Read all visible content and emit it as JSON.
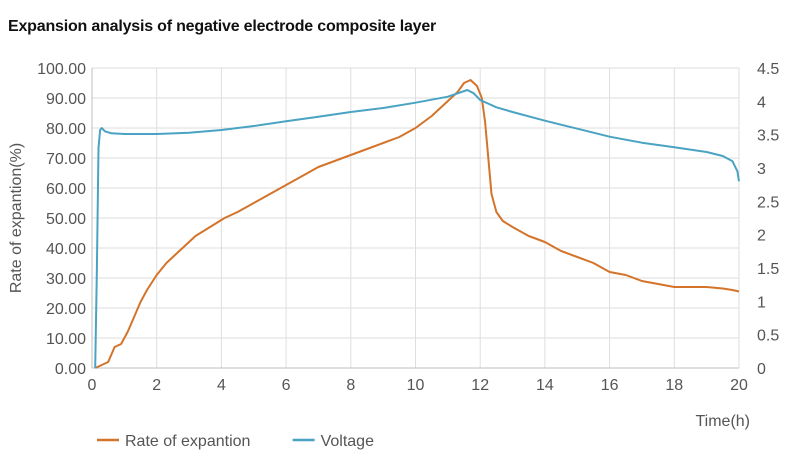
{
  "chart_data": {
    "type": "line",
    "title": "Expansion analysis of negative electrode composite layer",
    "xlabel": "Time(h)",
    "ylabel": "Rate of expantion(%)",
    "y2label": "",
    "xlim": [
      0,
      20
    ],
    "ylim": [
      0,
      100
    ],
    "y2lim": [
      0,
      4.5
    ],
    "x_ticks": [
      0,
      2,
      4,
      6,
      8,
      10,
      12,
      14,
      16,
      18,
      20
    ],
    "x_tick_labels": [
      "0",
      "2",
      "4",
      "6",
      "8",
      "10",
      "12",
      "14",
      "16",
      "18",
      "20"
    ],
    "y_ticks": [
      0,
      10,
      20,
      30,
      40,
      50,
      60,
      70,
      80,
      90,
      100
    ],
    "y_tick_labels": [
      "0.00",
      "10.00",
      "20.00",
      "30.00",
      "40.00",
      "50.00",
      "60.00",
      "70.00",
      "80.00",
      "90.00",
      "100.00"
    ],
    "y2_ticks": [
      0,
      0.5,
      1,
      1.5,
      2,
      2.5,
      3,
      3.5,
      4,
      4.5
    ],
    "y2_tick_labels": [
      "0",
      "0.5",
      "1",
      "1.5",
      "2",
      "2.5",
      "3",
      "3.5",
      "4",
      "4.5"
    ],
    "grid": true,
    "legend_position": "bottom-left",
    "series": [
      {
        "name": "Rate of expantion",
        "axis": "left",
        "color": "#d4742a",
        "x": [
          0.1,
          0.2,
          0.3,
          0.5,
          0.7,
          0.9,
          1.1,
          1.3,
          1.5,
          1.7,
          2.0,
          2.3,
          2.6,
          2.9,
          3.2,
          3.5,
          3.8,
          4.1,
          4.5,
          5.0,
          5.5,
          6.0,
          6.5,
          7.0,
          7.5,
          8.0,
          8.5,
          9.0,
          9.5,
          10.0,
          10.5,
          11.0,
          11.3,
          11.5,
          11.7,
          11.9,
          12.05,
          12.15,
          12.25,
          12.35,
          12.5,
          12.7,
          13.0,
          13.5,
          14.0,
          14.5,
          15.0,
          15.5,
          16.0,
          16.5,
          17.0,
          17.5,
          18.0,
          18.5,
          19.0,
          19.5,
          19.8,
          20.0
        ],
        "values": [
          0,
          0.5,
          1,
          2,
          7,
          8,
          12,
          17,
          22,
          26,
          31,
          35,
          38,
          41,
          44,
          46,
          48,
          50,
          52,
          55,
          58,
          61,
          64,
          67,
          69,
          71,
          73,
          75,
          77,
          80,
          84,
          89,
          92,
          95,
          96,
          94,
          90,
          82,
          70,
          58,
          52,
          49,
          47,
          44,
          42,
          39,
          37,
          35,
          32,
          31,
          29,
          28,
          27,
          27,
          27,
          26.5,
          26,
          25.5
        ]
      },
      {
        "name": "Voltage",
        "axis": "right",
        "color": "#4aa3c3",
        "x": [
          0.1,
          0.15,
          0.2,
          0.25,
          0.3,
          0.4,
          0.6,
          1.0,
          2.0,
          3.0,
          4.0,
          5.0,
          6.0,
          7.0,
          8.0,
          9.0,
          10.0,
          11.0,
          11.6,
          11.8,
          12.0,
          12.5,
          13.0,
          14.0,
          15.0,
          16.0,
          17.0,
          18.0,
          19.0,
          19.5,
          19.8,
          19.95,
          20.0
        ],
        "values": [
          0,
          1.5,
          3.3,
          3.57,
          3.6,
          3.55,
          3.52,
          3.51,
          3.51,
          3.53,
          3.57,
          3.63,
          3.7,
          3.77,
          3.84,
          3.9,
          3.98,
          4.07,
          4.17,
          4.12,
          4.02,
          3.91,
          3.84,
          3.71,
          3.59,
          3.47,
          3.38,
          3.31,
          3.24,
          3.18,
          3.1,
          2.95,
          2.8
        ]
      }
    ]
  }
}
